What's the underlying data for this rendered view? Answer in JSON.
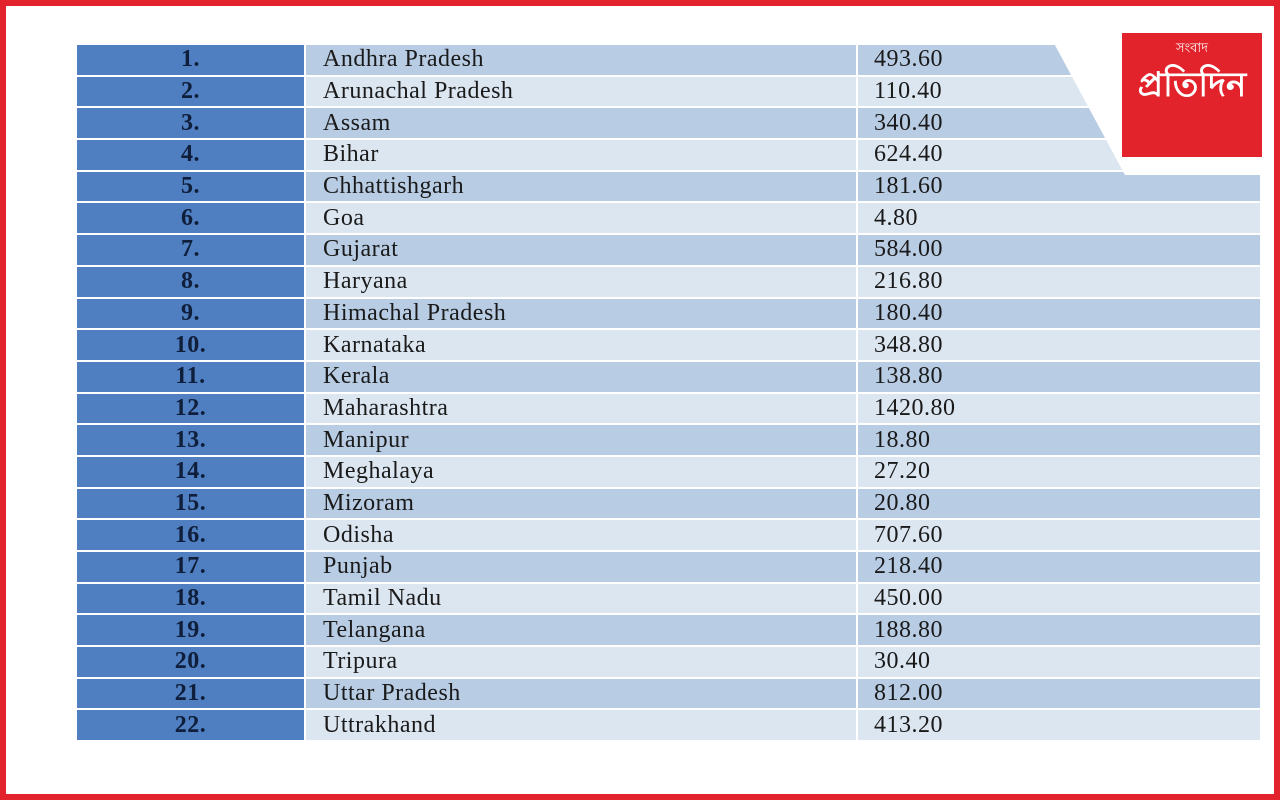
{
  "logo": {
    "small": "সংবাদ",
    "main": "প্রতিদিন"
  },
  "table": {
    "rows": [
      [
        "1.",
        "Andhra Pradesh",
        "493.60"
      ],
      [
        "2.",
        "Arunachal Pradesh",
        "110.40"
      ],
      [
        "3.",
        "Assam",
        "340.40"
      ],
      [
        "4.",
        "Bihar",
        "624.40"
      ],
      [
        "5.",
        "Chhattishgarh",
        "181.60"
      ],
      [
        "6.",
        "Goa",
        "4.80"
      ],
      [
        "7.",
        "Gujarat",
        "584.00"
      ],
      [
        "8.",
        "Haryana",
        "216.80"
      ],
      [
        "9.",
        "Himachal Pradesh",
        "180.40"
      ],
      [
        "10.",
        "Karnataka",
        "348.80"
      ],
      [
        "11.",
        "Kerala",
        "138.80"
      ],
      [
        "12.",
        "Maharashtra",
        "1420.80"
      ],
      [
        "13.",
        "Manipur",
        "18.80"
      ],
      [
        "14.",
        "Meghalaya",
        "27.20"
      ],
      [
        "15.",
        "Mizoram",
        "20.80"
      ],
      [
        "16.",
        "Odisha",
        "707.60"
      ],
      [
        "17.",
        "Punjab",
        "218.40"
      ],
      [
        "18.",
        "Tamil Nadu",
        "450.00"
      ],
      [
        "19.",
        "Telangana",
        "188.80"
      ],
      [
        "20.",
        "Tripura",
        "30.40"
      ],
      [
        "21.",
        "Uttar Pradesh",
        "812.00"
      ],
      [
        "22.",
        "Uttrakhand",
        "413.20"
      ]
    ]
  }
}
